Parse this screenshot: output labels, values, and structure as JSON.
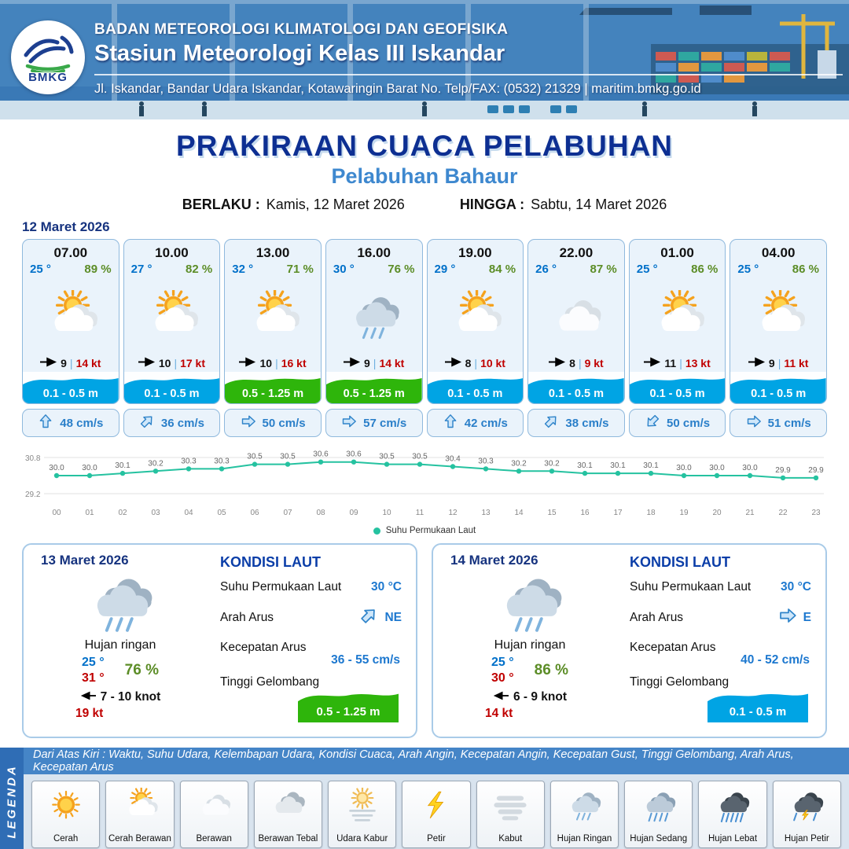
{
  "header": {
    "logo_label": "BMKG",
    "agency": "BADAN METEOROLOGI KLIMATOLOGI DAN GEOFISIKA",
    "station": "Stasiun Meteorologi Kelas III Iskandar",
    "address": "Jl. Iskandar, Bandar Udara Iskandar, Kotawaringin Barat No. Telp/FAX: (0532) 21329 | maritim.bmkg.go.id"
  },
  "title": {
    "main": "PRAKIRAAN CUACA PELABUHAN",
    "port": "Pelabuhan Bahaur",
    "berlaku_label": "BERLAKU :",
    "berlaku_value": "Kamis, 12 Maret 2026",
    "hingga_label": "HINGGA :",
    "hingga_value": "Sabtu, 14 Maret 2026"
  },
  "forecast_date": "12 Maret 2026",
  "forecast_cards": [
    {
      "time": "07.00",
      "temp": "25 °",
      "humidity": "89 %",
      "icon": "cerah-berawan",
      "wind_speed": "9",
      "gust": "14 kt",
      "wave": "0.1 - 0.5 m",
      "wave_color": "blue",
      "current": "48 cm/s",
      "current_dir": "N"
    },
    {
      "time": "10.00",
      "temp": "27 °",
      "humidity": "82 %",
      "icon": "cerah-berawan",
      "wind_speed": "10",
      "gust": "17 kt",
      "wave": "0.1 - 0.5 m",
      "wave_color": "blue",
      "current": "36 cm/s",
      "current_dir": "NE"
    },
    {
      "time": "13.00",
      "temp": "32 °",
      "humidity": "71 %",
      "icon": "cerah-berawan",
      "wind_speed": "10",
      "gust": "16 kt",
      "wave": "0.5 - 1.25 m",
      "wave_color": "green",
      "current": "50 cm/s",
      "current_dir": "E"
    },
    {
      "time": "16.00",
      "temp": "30 °",
      "humidity": "76 %",
      "icon": "hujan-ringan",
      "wind_speed": "9",
      "gust": "14 kt",
      "wave": "0.5 - 1.25 m",
      "wave_color": "green",
      "current": "57 cm/s",
      "current_dir": "E"
    },
    {
      "time": "19.00",
      "temp": "29 °",
      "humidity": "84 %",
      "icon": "cerah-berawan",
      "wind_speed": "8",
      "gust": "10 kt",
      "wave": "0.1 - 0.5 m",
      "wave_color": "blue",
      "current": "42 cm/s",
      "current_dir": "N"
    },
    {
      "time": "22.00",
      "temp": "26 °",
      "humidity": "87 %",
      "icon": "berawan",
      "wind_speed": "8",
      "gust": "9 kt",
      "wave": "0.1 - 0.5 m",
      "wave_color": "blue",
      "current": "38 cm/s",
      "current_dir": "NE"
    },
    {
      "time": "01.00",
      "temp": "25 °",
      "humidity": "86 %",
      "icon": "cerah-berawan",
      "wind_speed": "11",
      "gust": "13 kt",
      "wave": "0.1 - 0.5 m",
      "wave_color": "blue",
      "current": "50 cm/s",
      "current_dir": "SW"
    },
    {
      "time": "04.00",
      "temp": "25 °",
      "humidity": "86 %",
      "icon": "cerah-berawan",
      "wind_speed": "9",
      "gust": "11 kt",
      "wave": "0.1 - 0.5 m",
      "wave_color": "blue",
      "current": "51 cm/s",
      "current_dir": "E"
    }
  ],
  "chart_data": {
    "type": "line",
    "x": [
      "00",
      "01",
      "02",
      "03",
      "04",
      "05",
      "06",
      "07",
      "08",
      "09",
      "10",
      "11",
      "12",
      "13",
      "14",
      "15",
      "16",
      "17",
      "18",
      "19",
      "20",
      "21",
      "22",
      "23"
    ],
    "series": [
      {
        "name": "Suhu Permukaan Laut",
        "values": [
          30.0,
          30.0,
          30.1,
          30.2,
          30.3,
          30.3,
          30.5,
          30.5,
          30.6,
          30.6,
          30.5,
          30.5,
          30.4,
          30.3,
          30.2,
          30.2,
          30.1,
          30.1,
          30.1,
          30.0,
          30.0,
          30.0,
          29.9,
          29.9
        ]
      }
    ],
    "ylim": [
      29.2,
      30.8
    ],
    "line_color": "#25c2a0",
    "legend_position": "bottom",
    "grid": "top-bottom-only"
  },
  "daily": [
    {
      "date": "13 Maret 2026",
      "icon": "hujan-ringan",
      "condition": "Hujan ringan",
      "temp_min": "25 °",
      "temp_max": "31 °",
      "humidity": "76 %",
      "wind_range": "7 - 10 knot",
      "gust": "19 kt",
      "sea": {
        "heading": "KONDISI LAUT",
        "sst_label": "Suhu Permukaan Laut",
        "sst": "30 °C",
        "current_dir_label": "Arah Arus",
        "current_dir": "NE",
        "current_arrow": "NE",
        "current_speed_label": "Kecepatan Arus",
        "current_speed": "36 - 55 cm/s",
        "wave_label": "Tinggi Gelombang",
        "wave": "0.5 - 1.25 m",
        "wave_color": "green"
      }
    },
    {
      "date": "14 Maret 2026",
      "icon": "hujan-ringan",
      "condition": "Hujan ringan",
      "temp_min": "25 °",
      "temp_max": "30 °",
      "humidity": "86 %",
      "wind_range": "6 - 9 knot",
      "gust": "14 kt",
      "sea": {
        "heading": "KONDISI LAUT",
        "sst_label": "Suhu Permukaan Laut",
        "sst": "30 °C",
        "current_dir_label": "Arah Arus",
        "current_dir": "E",
        "current_arrow": "E",
        "current_speed_label": "Kecepatan Arus",
        "current_speed": "40 - 52 cm/s",
        "wave_label": "Tinggi Gelombang",
        "wave": "0.1 - 0.5 m",
        "wave_color": "blue"
      }
    }
  ],
  "legend": {
    "sidebar": "LEGENDA",
    "description": "Dari Atas Kiri : Waktu, Suhu Udara, Kelembapan Udara, Kondisi Cuaca, Arah Angin, Kecepatan Angin, Kecepatan Gust, Tinggi Gelombang, Arah Arus, Kecepatan Arus",
    "items": [
      {
        "label": "Cerah",
        "icon": "cerah"
      },
      {
        "label": "Cerah Berawan",
        "icon": "cerah-berawan"
      },
      {
        "label": "Berawan",
        "icon": "berawan"
      },
      {
        "label": "Berawan Tebal",
        "icon": "berawan-tebal"
      },
      {
        "label": "Udara Kabur",
        "icon": "udara-kabur"
      },
      {
        "label": "Petir",
        "icon": "petir"
      },
      {
        "label": "Kabut",
        "icon": "kabut"
      },
      {
        "label": "Hujan Ringan",
        "icon": "hujan-ringan"
      },
      {
        "label": "Hujan Sedang",
        "icon": "hujan-sedang"
      },
      {
        "label": "Hujan Lebat",
        "icon": "hujan-lebat"
      },
      {
        "label": "Hujan Petir",
        "icon": "hujan-petir"
      }
    ]
  },
  "colors": {
    "wave_blue": "#00a4e4",
    "wave_green": "#2eb50b",
    "temp_blue": "#0070c9",
    "humidity_green": "#5c8d27",
    "gust_red": "#c00000",
    "accent_navy": "#16337f",
    "subtitle_blue": "#3e88cf",
    "chart_line": "#25c2a0"
  }
}
